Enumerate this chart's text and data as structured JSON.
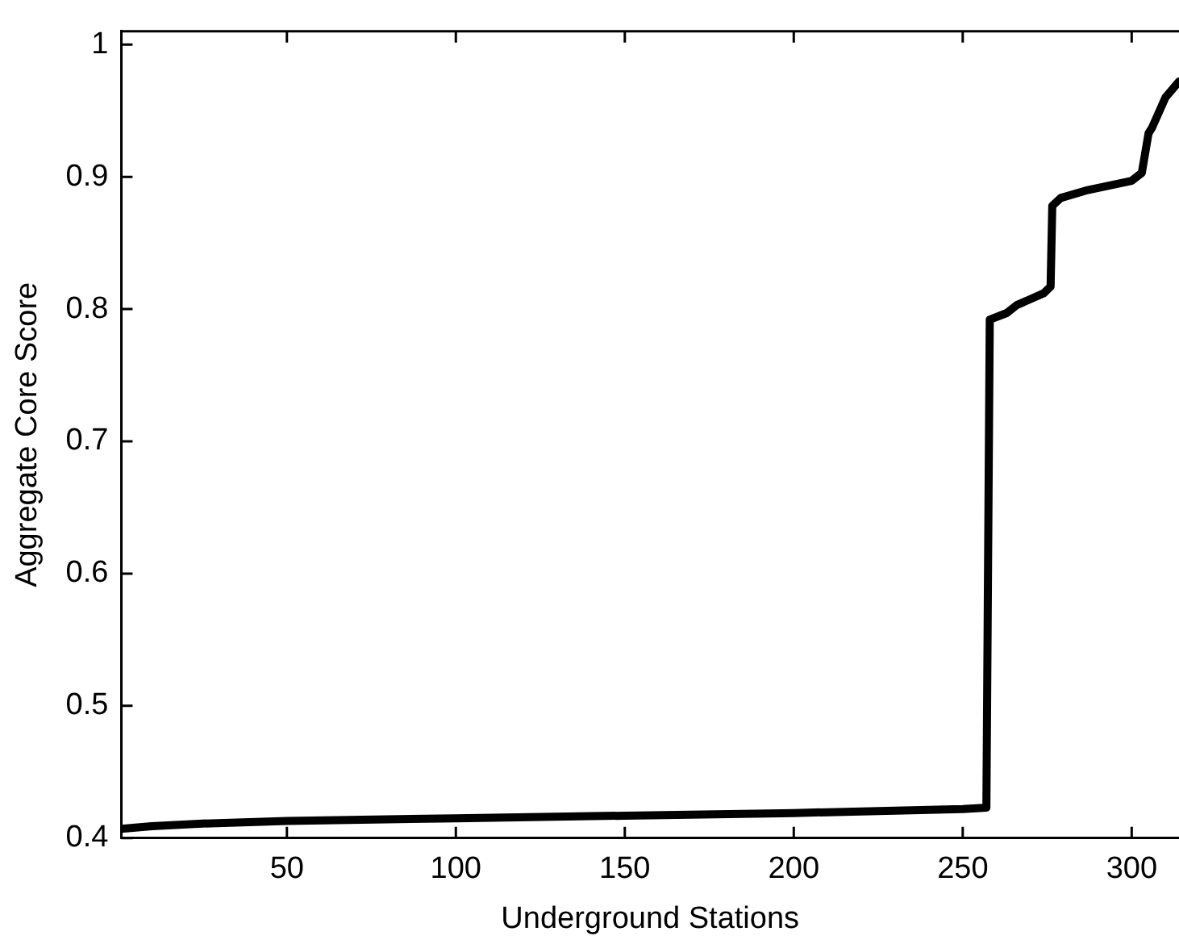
{
  "chart_data": {
    "type": "line",
    "xlabel": "Underground Stations",
    "ylabel": "Aggregate Core Score",
    "xlim": [
      1,
      314
    ],
    "xticks": [
      50,
      100,
      150,
      200,
      250,
      300
    ],
    "ylim": [
      0.4,
      1.01
    ],
    "yticks": [
      0.4,
      0.5,
      0.6,
      0.7,
      0.8,
      0.9,
      1
    ],
    "grid": false,
    "legend": false,
    "marker": "none",
    "line_style": "solid",
    "series": [
      {
        "color": "#000000",
        "x": [
          1,
          10,
          25,
          50,
          100,
          150,
          200,
          250,
          257,
          258,
          263,
          266,
          274,
          276,
          276.5,
          279,
          287,
          300,
          303,
          305,
          306,
          310,
          314
        ],
        "values": [
          0.407,
          0.409,
          0.411,
          0.413,
          0.415,
          0.417,
          0.419,
          0.422,
          0.423,
          0.792,
          0.797,
          0.803,
          0.812,
          0.817,
          0.878,
          0.884,
          0.89,
          0.897,
          0.903,
          0.933,
          0.937,
          0.96,
          0.972
        ]
      }
    ]
  }
}
